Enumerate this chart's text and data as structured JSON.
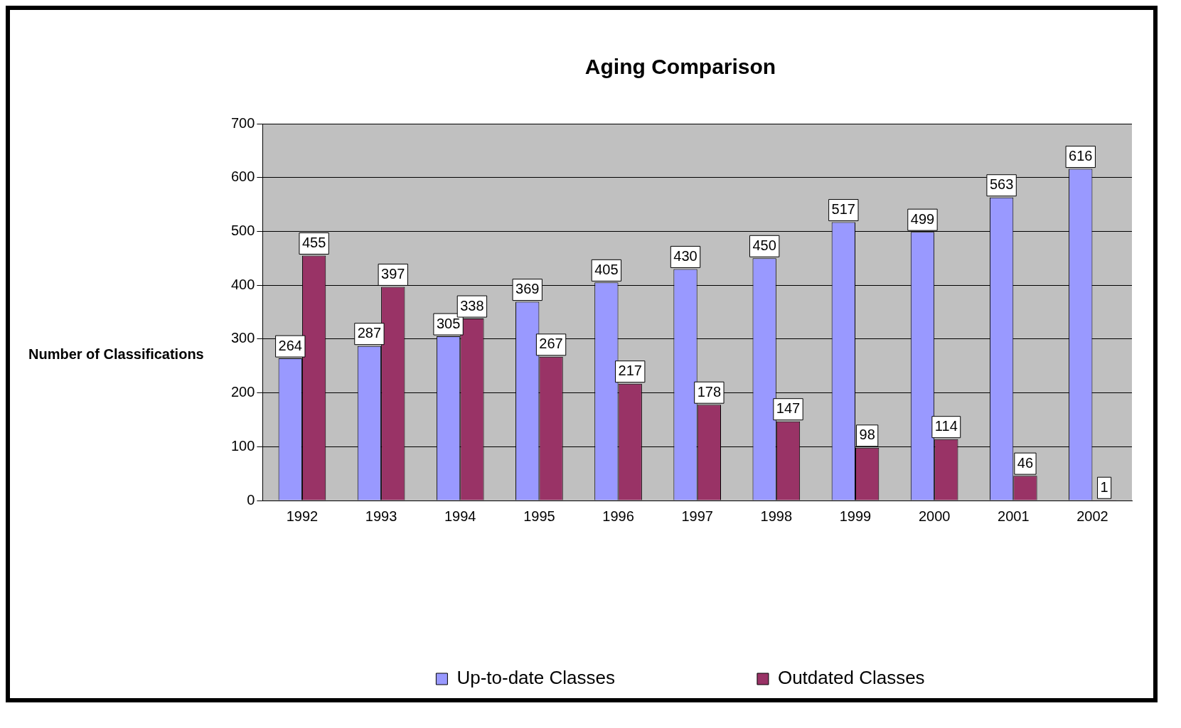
{
  "chart_data": {
    "type": "bar",
    "title": "Aging Comparison",
    "ylabel": "Number of Classifications",
    "categories": [
      "1992",
      "1993",
      "1994",
      "1995",
      "1996",
      "1997",
      "1998",
      "1999",
      "2000",
      "2001",
      "2002"
    ],
    "series": [
      {
        "name": "Up-to-date Classes",
        "color": "#9999ff",
        "values": [
          264,
          287,
          305,
          369,
          405,
          430,
          450,
          517,
          499,
          563,
          616
        ]
      },
      {
        "name": "Outdated Classes",
        "color": "#993366",
        "values": [
          455,
          397,
          338,
          267,
          217,
          178,
          147,
          98,
          114,
          46,
          1
        ]
      }
    ],
    "ylim": [
      0,
      700
    ],
    "yticks": [
      0,
      100,
      200,
      300,
      400,
      500,
      600,
      700
    ],
    "grid": "y",
    "legend": "bottom",
    "data_labels": true
  }
}
